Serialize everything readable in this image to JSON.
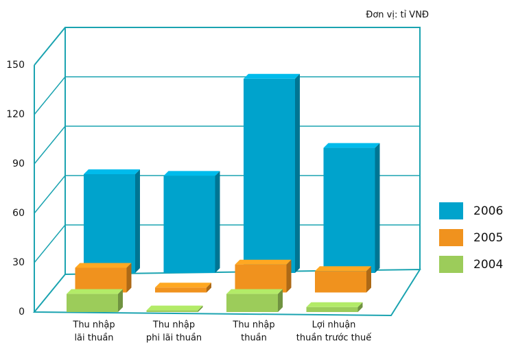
{
  "chart_data": {
    "type": "bar3d",
    "unit": "Đơn vị: tỉ VNĐ",
    "categories": [
      [
        "Thu nhập",
        "lãi thuần"
      ],
      [
        "Thu nhập",
        "phi lãi thuần"
      ],
      [
        "Thu nhập",
        "thuần"
      ],
      [
        "Lợi nhuận",
        "thuần trước thuế"
      ]
    ],
    "series": [
      {
        "name": "2006",
        "color": "#00a3cc",
        "values": [
          60,
          59,
          118,
          76
        ]
      },
      {
        "name": "2005",
        "color": "#f0921e",
        "values": [
          15,
          3,
          17,
          13
        ]
      },
      {
        "name": "2004",
        "color": "#9ccc5a",
        "values": [
          11,
          1,
          11,
          3
        ]
      }
    ],
    "ylim": [
      0,
      150
    ],
    "yticks": [
      0,
      30,
      60,
      90,
      120,
      150
    ],
    "grid": true,
    "legend": "right"
  }
}
